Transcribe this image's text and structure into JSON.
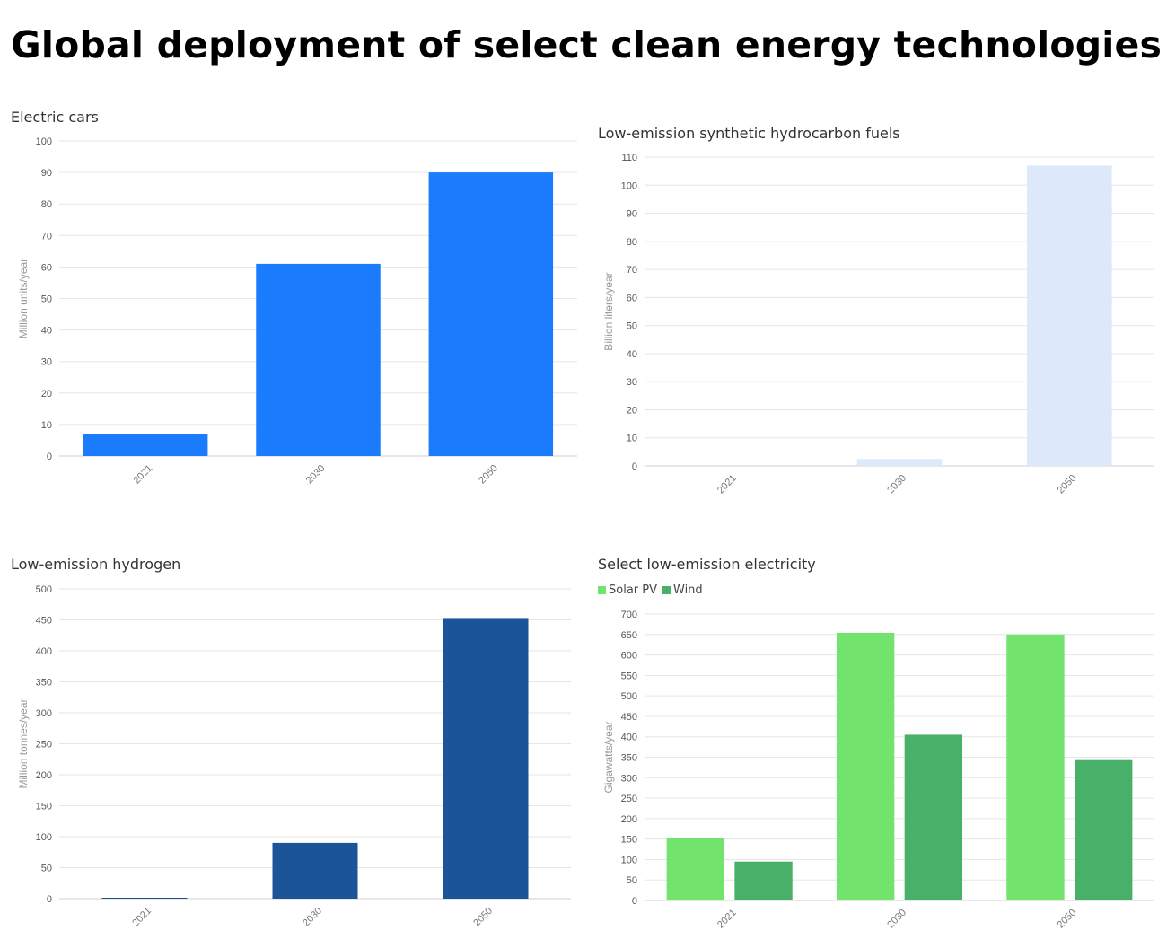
{
  "page_title": "Global deployment of select clean energy technologies",
  "chart_data": [
    {
      "type": "bar",
      "title": "Electric cars",
      "ylabel": "Million units/year",
      "xlabel": "",
      "categories": [
        "2021",
        "2030",
        "2050"
      ],
      "ylim": [
        0,
        100
      ],
      "yticks": [
        0,
        10,
        20,
        30,
        40,
        50,
        60,
        70,
        80,
        90,
        100
      ],
      "grid": true,
      "series": [
        {
          "values": [
            7,
            61,
            90
          ],
          "color": "#1a7cfc"
        }
      ]
    },
    {
      "type": "bar",
      "title": "Low-emission synthetic hydrocarbon fuels",
      "ylabel": "Billion liters/year",
      "xlabel": "",
      "categories": [
        "2021",
        "2030",
        "2050"
      ],
      "ylim": [
        0,
        110
      ],
      "yticks": [
        0,
        10,
        20,
        30,
        40,
        50,
        60,
        70,
        80,
        90,
        100,
        110
      ],
      "grid": true,
      "series": [
        {
          "values": [
            0,
            2.5,
            107
          ],
          "color": "#dde9fb"
        }
      ]
    },
    {
      "type": "bar",
      "title": "Low-emission hydrogen",
      "ylabel": "Million tonnes/year",
      "xlabel": "",
      "categories": [
        "2021",
        "2030",
        "2050"
      ],
      "ylim": [
        0,
        500
      ],
      "yticks": [
        0,
        50,
        100,
        150,
        200,
        250,
        300,
        350,
        400,
        450,
        500
      ],
      "grid": true,
      "series": [
        {
          "values": [
            1,
            90,
            453
          ],
          "color": "#1b5499"
        }
      ]
    },
    {
      "type": "bar",
      "title": "Select low-emission electricity",
      "ylabel": "Gigawatts/year",
      "xlabel": "",
      "categories": [
        "2021",
        "2030",
        "2050"
      ],
      "ylim": [
        0,
        700
      ],
      "yticks": [
        0,
        50,
        100,
        150,
        200,
        250,
        300,
        350,
        400,
        450,
        500,
        550,
        600,
        650,
        700
      ],
      "grid": true,
      "legend_position": "top-left",
      "series": [
        {
          "name": "Solar PV",
          "values": [
            152,
            654,
            650
          ],
          "color": "#72e46e"
        },
        {
          "name": "Wind",
          "values": [
            95,
            405,
            343
          ],
          "color": "#48b069"
        }
      ]
    }
  ]
}
